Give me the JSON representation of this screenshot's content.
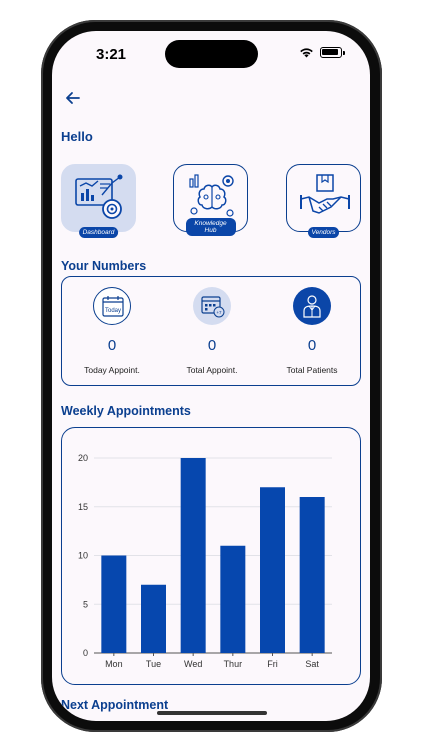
{
  "status_bar": {
    "time": "3:21"
  },
  "header": {
    "greeting": "Hello"
  },
  "tiles": [
    {
      "label": "Dashboard",
      "icon": "dashboard-analytics-icon",
      "active": true
    },
    {
      "label": "Knowledge Hub",
      "icon": "brain-gears-icon",
      "active": false
    },
    {
      "label": "Vendors",
      "icon": "handshake-box-icon",
      "active": false
    }
  ],
  "numbers": {
    "title": "Your Numbers",
    "items": [
      {
        "value": "0",
        "label": "Today Appoint.",
        "icon": "calendar-today-icon",
        "icon_text": "Today"
      },
      {
        "value": "0",
        "label": "Total Appoint.",
        "icon": "calendar-total-icon",
        "icon_text": "+7"
      },
      {
        "value": "0",
        "label": "Total Patients",
        "icon": "patient-icon"
      }
    ]
  },
  "weekly": {
    "title": "Weekly Appointments"
  },
  "chart_data": {
    "type": "bar",
    "categories": [
      "Mon",
      "Tue",
      "Wed",
      "Thur",
      "Fri",
      "Sat"
    ],
    "values": [
      10,
      7,
      20,
      11,
      17,
      16
    ],
    "title": "",
    "xlabel": "",
    "ylabel": "",
    "ylim": [
      0,
      20
    ],
    "yticks": [
      0,
      5,
      10,
      15,
      20
    ],
    "grid": true,
    "color": "#0647ae"
  },
  "next": {
    "title": "Next Appointment"
  },
  "colors": {
    "primary": "#0b3f8f",
    "accent": "#0647ae",
    "tile_active": "#d4dcf0"
  }
}
